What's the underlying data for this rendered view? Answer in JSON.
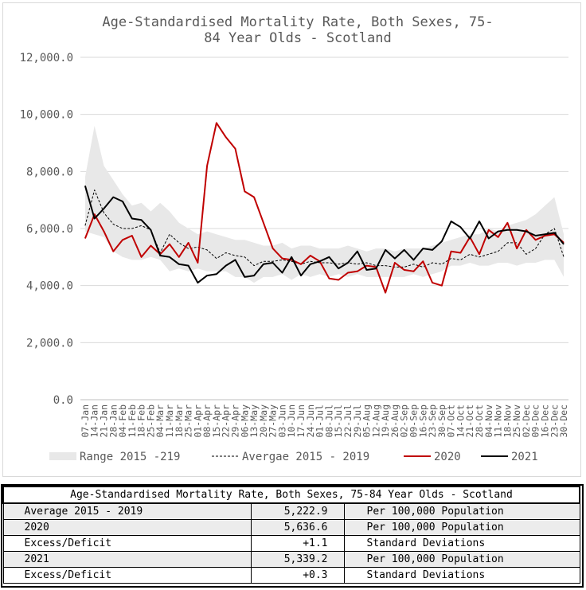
{
  "chart_data": {
    "type": "line",
    "title": "Age-Standardised Mortality Rate, Both Sexes, 75-\n84 Year Olds - Scotland",
    "ylim": [
      0,
      12000
    ],
    "yticks": [
      0,
      2000,
      4000,
      6000,
      8000,
      10000,
      12000
    ],
    "ytick_labels": [
      "0.0",
      "2,000.0",
      "4,000.0",
      "6,000.0",
      "8,000.0",
      "10,000.0",
      "12,000.0"
    ],
    "grid": true,
    "legend_position": "bottom",
    "categories": [
      "07-Jan",
      "14-Jan",
      "21-Jan",
      "28-Jan",
      "04-Feb",
      "11-Feb",
      "18-Feb",
      "25-Feb",
      "04-Mar",
      "11-Mar",
      "18-Mar",
      "25-Mar",
      "01-Apr",
      "08-Apr",
      "15-Apr",
      "22-Apr",
      "29-Apr",
      "06-May",
      "13-May",
      "20-May",
      "27-May",
      "03-Jun",
      "10-Jun",
      "17-Jun",
      "24-Jun",
      "01-Jul",
      "08-Jul",
      "15-Jul",
      "22-Jul",
      "29-Jul",
      "05-Aug",
      "12-Aug",
      "19-Aug",
      "26-Aug",
      "02-Sep",
      "09-Sep",
      "16-Sep",
      "23-Sep",
      "30-Sep",
      "07-Oct",
      "14-Oct",
      "21-Oct",
      "28-Oct",
      "04-Nov",
      "11-Nov",
      "18-Nov",
      "25-Nov",
      "02-Dec",
      "09-Dec",
      "16-Dec",
      "23-Dec",
      "30-Dec"
    ],
    "xtick_labels": [
      "07-Jan",
      "14-Jan",
      "21-Jan",
      "28-Jan",
      "04-Feb",
      "11-Feb",
      "18-Feb",
      "25-Feb",
      "04-Mar",
      "11-Mar",
      "18-Mar",
      "25-Mar",
      "01-Apr",
      "08-Apr",
      "15-Apr",
      "22-Apr",
      "29-Apr",
      "06-May",
      "13-May",
      "20-May",
      "27-May",
      "03-Jun",
      "10-Jun",
      "17-Jun",
      "24-Jun",
      "01-Jul",
      "08-Jul",
      "15-Jul",
      "22-Jul",
      "29-Jul",
      "05-Aug",
      "12-Aug",
      "19-Aug",
      "26-Aug",
      "02-Sep",
      "09-Sep",
      "16-Sep",
      "23-Sep",
      "30-Sep",
      "07-Oct",
      "14-Oct",
      "21-Oct",
      "28-Oct",
      "04-Nov",
      "11-Nov",
      "18-Nov",
      "25-Nov",
      "02-Dec",
      "09-Dec",
      "16-Dec",
      "23-Dec",
      "30-Dec"
    ],
    "range": {
      "name": "Range 2015 -219",
      "color": "#e8e8e8",
      "low": [
        5900,
        5800,
        5700,
        5200,
        5000,
        4900,
        4900,
        5000,
        4900,
        4500,
        4600,
        4500,
        4600,
        4500,
        4500,
        4500,
        4300,
        4300,
        4100,
        4300,
        4300,
        4400,
        4200,
        4400,
        4300,
        4400,
        4300,
        4400,
        4300,
        4400,
        4300,
        4300,
        4300,
        4300,
        4300,
        4400,
        4300,
        4400,
        4500,
        4700,
        4700,
        4800,
        4700,
        4700,
        4800,
        4800,
        4700,
        4800,
        4800,
        4900,
        4900,
        4300
      ],
      "high": [
        7800,
        9600,
        8200,
        7700,
        7200,
        6800,
        6900,
        6600,
        6900,
        6600,
        6200,
        6000,
        5800,
        5900,
        5800,
        5700,
        5600,
        5600,
        5500,
        5400,
        5400,
        5500,
        5300,
        5400,
        5400,
        5300,
        5300,
        5300,
        5400,
        5300,
        5200,
        5300,
        5300,
        5200,
        5300,
        5300,
        5300,
        5400,
        5500,
        5600,
        5700,
        5800,
        5800,
        6000,
        5900,
        6100,
        6200,
        6300,
        6500,
        6800,
        7100,
        5800
      ]
    },
    "series": [
      {
        "name": "Avergae 2015 - 2019",
        "color": "#000000",
        "dash": true,
        "values": [
          6100,
          7350,
          6550,
          6150,
          6000,
          6000,
          6100,
          5950,
          5150,
          5800,
          5500,
          5300,
          5350,
          5250,
          4950,
          5150,
          5050,
          5000,
          4700,
          4850,
          4850,
          4900,
          4850,
          4750,
          4850,
          4800,
          4800,
          4750,
          4800,
          4750,
          4800,
          4700,
          4700,
          4650,
          4650,
          4750,
          4650,
          4800,
          4750,
          4950,
          4900,
          5100,
          5000,
          5100,
          5200,
          5500,
          5500,
          5100,
          5300,
          5800,
          6000,
          5000
        ]
      },
      {
        "name": "2020",
        "color": "#c00000",
        "dash": false,
        "values": [
          5650,
          6500,
          5900,
          5200,
          5600,
          5750,
          5000,
          5400,
          5100,
          5450,
          5000,
          5500,
          4800,
          8200,
          9700,
          9200,
          8800,
          7300,
          7100,
          6200,
          5300,
          4950,
          4900,
          4750,
          5050,
          4850,
          4250,
          4200,
          4450,
          4500,
          4700,
          4650,
          3750,
          4800,
          4550,
          4500,
          4850,
          4100,
          4000,
          5200,
          5150,
          5700,
          5100,
          5950,
          5700,
          6200,
          5300,
          5950,
          5600,
          5750,
          5800,
          5500
        ]
      },
      {
        "name": "2021",
        "color": "#000000",
        "dash": false,
        "values": [
          7500,
          6350,
          6700,
          7100,
          6950,
          6350,
          6300,
          5950,
          5050,
          5000,
          4750,
          4700,
          4100,
          4350,
          4400,
          4700,
          4900,
          4300,
          4350,
          4750,
          4800,
          4450,
          5000,
          4350,
          4750,
          4850,
          5000,
          4600,
          4800,
          5200,
          4550,
          4600,
          5250,
          4950,
          5250,
          4900,
          5300,
          5250,
          5550,
          6250,
          6050,
          5650,
          6250,
          5650,
          5900,
          5950,
          5950,
          5900,
          5750,
          5800,
          5850,
          5450
        ]
      }
    ],
    "legend": [
      "Range 2015 -219",
      "Avergae 2015 - 2019",
      "2020",
      "2021"
    ]
  },
  "table": {
    "title": "Age-Standardised Mortality Rate, Both Sexes, 75-84 Year Olds - Scotland",
    "rows": [
      {
        "label": "Average 2015 - 2019",
        "value": "5,222.9",
        "unit": "Per 100,000 Population"
      },
      {
        "label": "2020",
        "value": "5,636.6",
        "unit": "Per 100,000 Population"
      },
      {
        "label": "Excess/Deficit",
        "value": "+1.1",
        "unit": "Standard Deviations"
      },
      {
        "label": "2021",
        "value": "5,339.2",
        "unit": "Per 100,000 Population"
      },
      {
        "label": "Excess/Deficit",
        "value": "+0.3",
        "unit": "Standard Deviations"
      }
    ]
  }
}
